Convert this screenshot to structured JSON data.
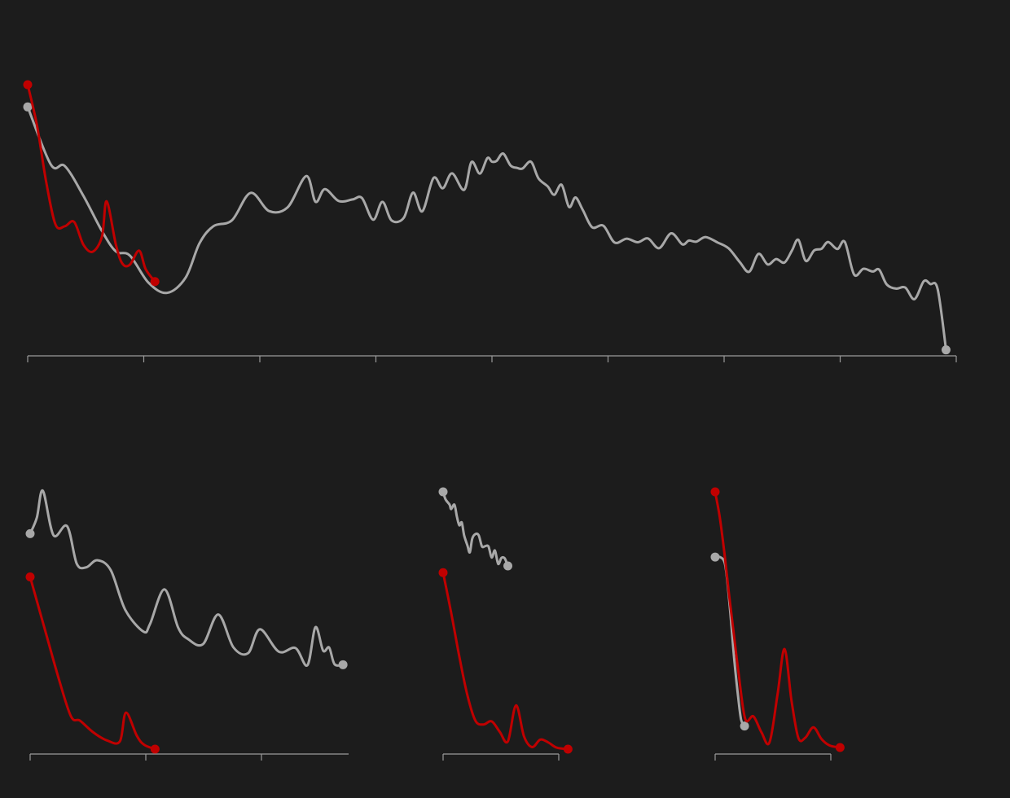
{
  "colors": {
    "background": "#1c1c1c",
    "highlight": "#c00000",
    "series": "#a8a8a8",
    "axis": "#9a9a9a"
  },
  "chart_data": [
    {
      "type": "line",
      "grid": false,
      "legend": "none",
      "xlim": [
        0,
        1.0
      ],
      "ylim": [
        0,
        1
      ],
      "series": [
        {
          "role": "context",
          "color": "#a8a8a8",
          "x": [
            0.0,
            0.025,
            0.04,
            0.06,
            0.08,
            0.095,
            0.11,
            0.13,
            0.15,
            0.17,
            0.185,
            0.2,
            0.22,
            0.24,
            0.26,
            0.28,
            0.3,
            0.31,
            0.32,
            0.335,
            0.35,
            0.36,
            0.372,
            0.382,
            0.392,
            0.405,
            0.415,
            0.425,
            0.437,
            0.447,
            0.457,
            0.47,
            0.478,
            0.487,
            0.495,
            0.5,
            0.505,
            0.512,
            0.52,
            0.527,
            0.533,
            0.542,
            0.55,
            0.56,
            0.567,
            0.575,
            0.583,
            0.59,
            0.598,
            0.608,
            0.62,
            0.632,
            0.645,
            0.657,
            0.668,
            0.68,
            0.693,
            0.705,
            0.712,
            0.72,
            0.73,
            0.743,
            0.755,
            0.767,
            0.777,
            0.787,
            0.797,
            0.806,
            0.815,
            0.823,
            0.83,
            0.838,
            0.847,
            0.855,
            0.862,
            0.872,
            0.88,
            0.89,
            0.9,
            0.91,
            0.917,
            0.925,
            0.935,
            0.945,
            0.955,
            0.965,
            0.972,
            0.98,
            0.989
          ],
          "y": [
            0.918,
            0.705,
            0.7,
            0.59,
            0.46,
            0.385,
            0.37,
            0.27,
            0.232,
            0.288,
            0.415,
            0.478,
            0.5,
            0.601,
            0.534,
            0.548,
            0.663,
            0.568,
            0.615,
            0.571,
            0.577,
            0.582,
            0.502,
            0.568,
            0.499,
            0.509,
            0.602,
            0.533,
            0.656,
            0.618,
            0.673,
            0.612,
            0.715,
            0.672,
            0.729,
            0.716,
            0.719,
            0.746,
            0.702,
            0.693,
            0.691,
            0.716,
            0.655,
            0.625,
            0.594,
            0.631,
            0.549,
            0.584,
            0.537,
            0.474,
            0.48,
            0.418,
            0.432,
            0.419,
            0.433,
            0.397,
            0.452,
            0.411,
            0.425,
            0.421,
            0.438,
            0.418,
            0.396,
            0.345,
            0.31,
            0.376,
            0.337,
            0.357,
            0.344,
            0.388,
            0.428,
            0.35,
            0.389,
            0.395,
            0.42,
            0.394,
            0.42,
            0.3,
            0.321,
            0.311,
            0.318,
            0.264,
            0.248,
            0.252,
            0.209,
            0.275,
            0.265,
            0.246,
            0.022
          ]
        },
        {
          "role": "highlight",
          "color": "#c00000",
          "x": [
            0.0,
            0.01,
            0.02,
            0.03,
            0.04,
            0.05,
            0.06,
            0.07,
            0.08,
            0.085,
            0.095,
            0.102,
            0.11,
            0.12,
            0.127,
            0.137
          ],
          "y": [
            1.0,
            0.85,
            0.64,
            0.484,
            0.478,
            0.494,
            0.41,
            0.384,
            0.44,
            0.57,
            0.41,
            0.34,
            0.336,
            0.388,
            0.32,
            0.274
          ]
        }
      ]
    },
    {
      "type": "line",
      "grid": false,
      "legend": "none",
      "xlim": [
        0,
        2.75
      ],
      "ylim": [
        0,
        1
      ],
      "series": [
        {
          "role": "context",
          "color": "#a8a8a8",
          "x": [
            0.0,
            0.058,
            0.11,
            0.202,
            0.319,
            0.403,
            0.487,
            0.58,
            0.697,
            0.822,
            0.98,
            1.037,
            1.162,
            1.28,
            1.367,
            1.495,
            1.627,
            1.757,
            1.884,
            1.987,
            2.15,
            2.294,
            2.397,
            2.467,
            2.533,
            2.585,
            2.632,
            2.705
          ],
          "y": [
            0.827,
            0.888,
            0.992,
            0.821,
            0.856,
            0.712,
            0.698,
            0.725,
            0.687,
            0.535,
            0.451,
            0.481,
            0.613,
            0.466,
            0.422,
            0.403,
            0.517,
            0.391,
            0.368,
            0.46,
            0.374,
            0.388,
            0.322,
            0.468,
            0.378,
            0.39,
            0.326,
            0.324
          ]
        },
        {
          "role": "highlight",
          "color": "#c00000",
          "x": [
            0.0,
            0.122,
            0.244,
            0.353,
            0.432,
            0.547,
            0.667,
            0.776,
            0.828,
            0.922,
            0.985,
            1.08
          ],
          "y": [
            0.661,
            0.468,
            0.276,
            0.126,
            0.109,
            0.064,
            0.033,
            0.03,
            0.14,
            0.052,
            0.017,
            0.0
          ]
        }
      ]
    },
    {
      "type": "line",
      "grid": false,
      "legend": "none",
      "xlim": [
        0,
        1.0
      ],
      "ylim": [
        0,
        1
      ],
      "series": [
        {
          "role": "context",
          "color": "#a8a8a8",
          "x": [
            0.0,
            0.021,
            0.056,
            0.07,
            0.098,
            0.12,
            0.14,
            0.161,
            0.182,
            0.21,
            0.231,
            0.252,
            0.28,
            0.308,
            0.336,
            0.364,
            0.392,
            0.42,
            0.448,
            0.476,
            0.504,
            0.532,
            0.56
          ],
          "y": [
            1.0,
            0.971,
            0.95,
            0.933,
            0.95,
            0.903,
            0.87,
            0.881,
            0.831,
            0.792,
            0.765,
            0.818,
            0.836,
            0.831,
            0.788,
            0.789,
            0.788,
            0.745,
            0.772,
            0.72,
            0.743,
            0.742,
            0.712
          ]
        },
        {
          "role": "highlight",
          "color": "#c00000",
          "x": [
            0.0,
            0.07,
            0.14,
            0.21,
            0.28,
            0.35,
            0.42,
            0.49,
            0.56,
            0.63,
            0.7,
            0.77,
            0.84,
            0.91,
            0.98,
            1.08
          ],
          "y": [
            0.686,
            0.53,
            0.36,
            0.21,
            0.11,
            0.096,
            0.108,
            0.067,
            0.03,
            0.17,
            0.049,
            0.008,
            0.037,
            0.026,
            0.006,
            0.0
          ]
        }
      ]
    },
    {
      "type": "line",
      "grid": false,
      "legend": "none",
      "xlim": [
        0,
        1.0
      ],
      "ylim": [
        0,
        1
      ],
      "series": [
        {
          "role": "context",
          "color": "#a8a8a8",
          "x": [
            0.0,
            0.042,
            0.084,
            0.112,
            0.14,
            0.168,
            0.196,
            0.224,
            0.254
          ],
          "y": [
            0.745,
            0.745,
            0.72,
            0.62,
            0.48,
            0.33,
            0.21,
            0.11,
            0.084
          ]
        },
        {
          "role": "highlight",
          "color": "#c00000",
          "x": [
            0.0,
            0.04,
            0.08,
            0.12,
            0.16,
            0.2,
            0.26,
            0.33,
            0.4,
            0.47,
            0.54,
            0.6,
            0.66,
            0.72,
            0.78,
            0.85,
            0.92,
            0.99,
            1.08
          ],
          "y": [
            1.0,
            0.9,
            0.76,
            0.6,
            0.45,
            0.3,
            0.112,
            0.122,
            0.06,
            0.02,
            0.21,
            0.385,
            0.184,
            0.037,
            0.039,
            0.079,
            0.033,
            0.008,
            0.0
          ]
        }
      ]
    }
  ]
}
